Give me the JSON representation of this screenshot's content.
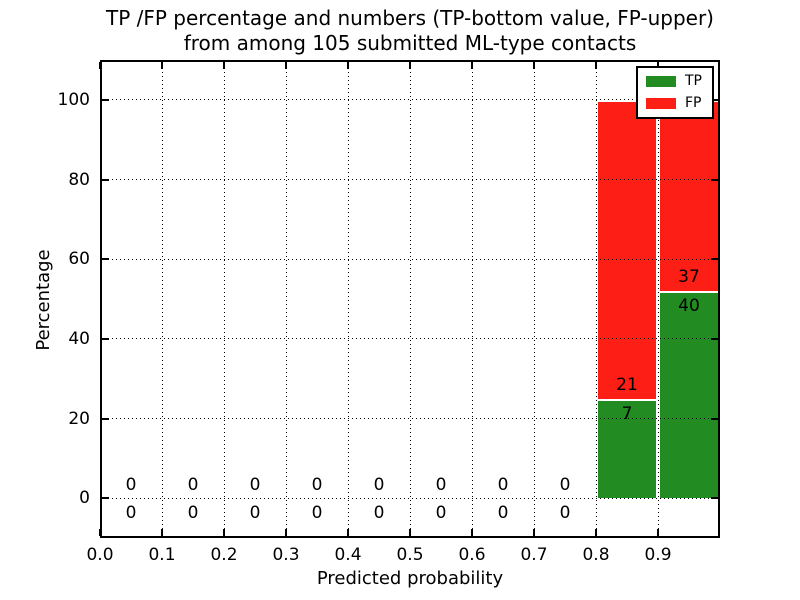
{
  "figure": {
    "title_line1": "TP /FP percentage and numbers (TP-bottom value, FP-upper)",
    "title_line2": "from among 105 submitted ML-type contacts"
  },
  "chart_data": {
    "type": "bar",
    "stacked": true,
    "title": "TP /FP percentage and numbers (TP-bottom value, FP-upper)\nfrom among 105 submitted ML-type contacts",
    "xlabel": "Predicted probability",
    "ylabel": "Percentage",
    "xlim": [
      0.0,
      1.0
    ],
    "ylim": [
      -10,
      110
    ],
    "grid": true,
    "grid_style": "dotted",
    "legend_position": "upper right",
    "total_contacts": 105,
    "series": [
      {
        "name": "TP",
        "color": "#228b22"
      },
      {
        "name": "FP",
        "color": "#fd1e15"
      }
    ],
    "bar_edge_color": "#ffffff",
    "xticks": [
      {
        "value": 0.0,
        "label": "0.0"
      },
      {
        "value": 0.1,
        "label": "0.1"
      },
      {
        "value": 0.2,
        "label": "0.2"
      },
      {
        "value": 0.3,
        "label": "0.3"
      },
      {
        "value": 0.4,
        "label": "0.4"
      },
      {
        "value": 0.5,
        "label": "0.5"
      },
      {
        "value": 0.6,
        "label": "0.6"
      },
      {
        "value": 0.7,
        "label": "0.7"
      },
      {
        "value": 0.8,
        "label": "0.8"
      },
      {
        "value": 0.9,
        "label": "0.9"
      }
    ],
    "yticks": [
      {
        "value": 0,
        "label": "0"
      },
      {
        "value": 20,
        "label": "20"
      },
      {
        "value": 40,
        "label": "40"
      },
      {
        "value": 60,
        "label": "60"
      },
      {
        "value": 80,
        "label": "80"
      },
      {
        "value": 100,
        "label": "100"
      }
    ],
    "bins": [
      {
        "range": [
          0.0,
          0.1
        ],
        "center": 0.05,
        "tp_count": 0,
        "fp_count": 0,
        "tp_pct": 0,
        "fp_pct": 0
      },
      {
        "range": [
          0.1,
          0.2
        ],
        "center": 0.15,
        "tp_count": 0,
        "fp_count": 0,
        "tp_pct": 0,
        "fp_pct": 0
      },
      {
        "range": [
          0.2,
          0.3
        ],
        "center": 0.25,
        "tp_count": 0,
        "fp_count": 0,
        "tp_pct": 0,
        "fp_pct": 0
      },
      {
        "range": [
          0.3,
          0.4
        ],
        "center": 0.35,
        "tp_count": 0,
        "fp_count": 0,
        "tp_pct": 0,
        "fp_pct": 0
      },
      {
        "range": [
          0.4,
          0.5
        ],
        "center": 0.45,
        "tp_count": 0,
        "fp_count": 0,
        "tp_pct": 0,
        "fp_pct": 0
      },
      {
        "range": [
          0.5,
          0.6
        ],
        "center": 0.55,
        "tp_count": 0,
        "fp_count": 0,
        "tp_pct": 0,
        "fp_pct": 0
      },
      {
        "range": [
          0.6,
          0.7
        ],
        "center": 0.65,
        "tp_count": 0,
        "fp_count": 0,
        "tp_pct": 0,
        "fp_pct": 0
      },
      {
        "range": [
          0.7,
          0.8
        ],
        "center": 0.75,
        "tp_count": 0,
        "fp_count": 0,
        "tp_pct": 0,
        "fp_pct": 0
      },
      {
        "range": [
          0.8,
          0.9
        ],
        "center": 0.85,
        "tp_count": 7,
        "fp_count": 21,
        "tp_pct": 25.0,
        "fp_pct": 75.0
      },
      {
        "range": [
          0.9,
          1.0
        ],
        "center": 0.95,
        "tp_count": 40,
        "fp_count": 37,
        "tp_pct": 51.9,
        "fp_pct": 48.1
      }
    ]
  }
}
